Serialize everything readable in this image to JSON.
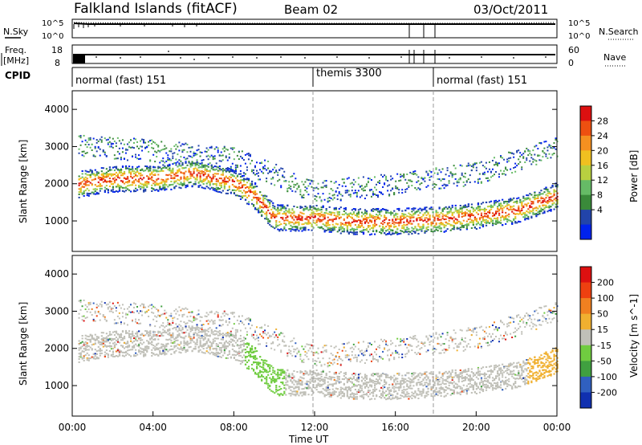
{
  "header": {
    "station": "Falkland Islands (fitACF)",
    "beam": "Beam 02",
    "date": "03/Oct/2011"
  },
  "noise_panel": {
    "left_label": "N.Sky",
    "right_label": "N.Search",
    "left_ticks": [
      "10^5",
      "10^0"
    ],
    "right_ticks": [
      "10^5",
      "10^0"
    ]
  },
  "freq_panel": {
    "left_label_1": "Freq.",
    "left_label_2": "[MHz]",
    "right_label": "Nave",
    "left_ticks": [
      "18",
      "8"
    ],
    "right_ticks": [
      "60",
      "0"
    ]
  },
  "cpid_panel": {
    "label": "CPID",
    "modes": [
      {
        "name": "normal (fast) 151",
        "start_hour": 0
      },
      {
        "name": "themis 3300",
        "start_hour": 12
      },
      {
        "name": "normal (fast) 151",
        "start_hour": 18
      }
    ]
  },
  "chart_data": [
    {
      "type": "heatmap",
      "title": "Power",
      "ylabel": "Slant Range [km]",
      "ylim": [
        180,
        4500
      ],
      "yticks": [
        "4000",
        "3000",
        "2000",
        "1000"
      ],
      "colorbar_label": "Power [dB]",
      "colorbar_ticks": [
        "28",
        "24",
        "20",
        "16",
        "12",
        "8",
        "4"
      ],
      "colorbar_colors": [
        "#0022ee",
        "#2244aa",
        "#3a8a3a",
        "#66bb66",
        "#b8d040",
        "#f0c020",
        "#f59020",
        "#ee5010",
        "#dd1010"
      ],
      "bands": [
        {
          "name": "main echo band",
          "points": [
            [
              0.3,
              2000
            ],
            [
              2,
              2150
            ],
            [
              4,
              2150
            ],
            [
              6,
              2300
            ],
            [
              8,
              2050
            ],
            [
              9,
              1700
            ],
            [
              10,
              1100
            ],
            [
              12,
              1100
            ],
            [
              14,
              1000
            ],
            [
              16,
              1000
            ],
            [
              18,
              1050
            ],
            [
              20,
              1150
            ],
            [
              22,
              1300
            ],
            [
              24,
              1700
            ]
          ]
        },
        {
          "name": "upper scatter",
          "points": [
            [
              0.3,
              3050
            ],
            [
              4,
              2900
            ],
            [
              8,
              2700
            ],
            [
              12,
              1800
            ],
            [
              16,
              2000
            ],
            [
              20,
              2300
            ],
            [
              24,
              3000
            ]
          ]
        }
      ]
    },
    {
      "type": "heatmap",
      "title": "Velocity",
      "ylabel": "Slant Range [km]",
      "ylim": [
        180,
        4500
      ],
      "yticks": [
        "4000",
        "3000",
        "2000",
        "1000"
      ],
      "colorbar_label": "Velocity [m s^-1]",
      "colorbar_ticks": [
        "200",
        "100",
        "50",
        "15",
        "-15",
        "-50",
        "-100",
        "-200"
      ],
      "colorbar_colors": [
        "#1030b0",
        "#3060c0",
        "#40a040",
        "#70cc40",
        "#c0c0b8",
        "#f0b030",
        "#f08020",
        "#ee4010",
        "#dd1010"
      ]
    }
  ],
  "time_axis": {
    "ticks": [
      "00:00",
      "04:00",
      "08:00",
      "12:00",
      "16:00",
      "20:00",
      "00:00"
    ],
    "label": "Time UT"
  }
}
